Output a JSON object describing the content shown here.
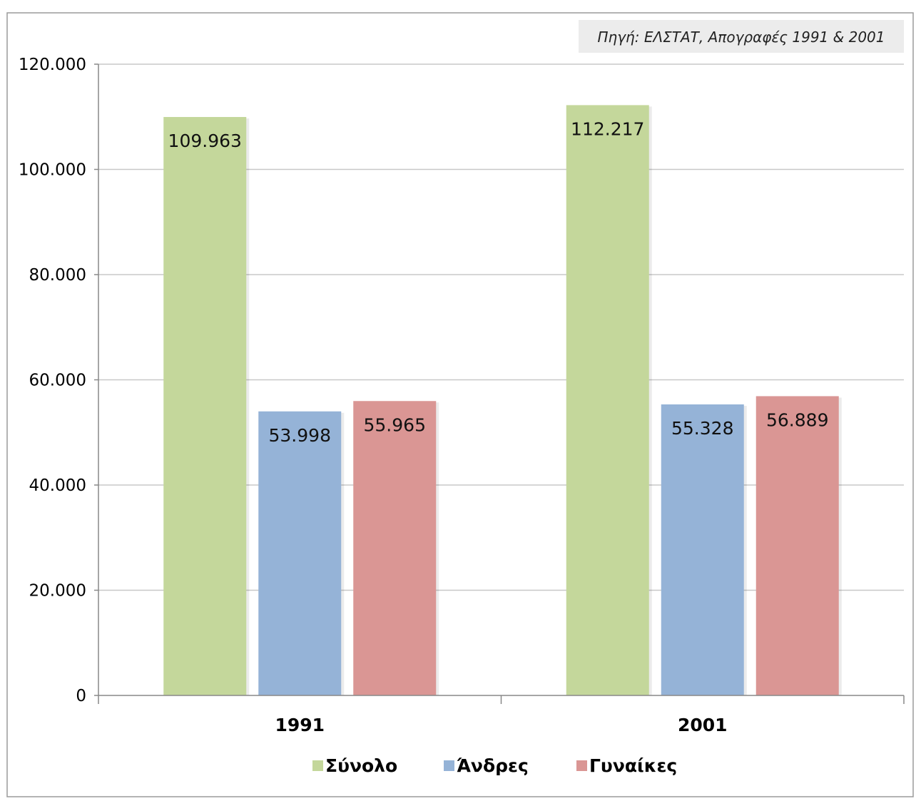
{
  "source_note": "Πηγή: ΕΛΣΤΑΤ, Απογραφές 1991 & 2001",
  "chart_data": {
    "type": "bar",
    "categories": [
      "1991",
      "2001"
    ],
    "series": [
      {
        "name": "Σύνολο",
        "values": [
          109963,
          112217
        ],
        "value_labels": [
          "109.963",
          "112.217"
        ],
        "color": "#c4d79b"
      },
      {
        "name": "Άνδρες",
        "values": [
          53998,
          55328
        ],
        "value_labels": [
          "53.998",
          "55.328"
        ],
        "color": "#95b3d7"
      },
      {
        "name": "Γυναίκες",
        "values": [
          55965,
          56889
        ],
        "value_labels": [
          "55.965",
          "56.889"
        ],
        "color": "#da9694"
      }
    ],
    "ylim": [
      0,
      120000
    ],
    "yticks": [
      0,
      20000,
      40000,
      60000,
      80000,
      100000,
      120000
    ],
    "ytick_labels": [
      "0",
      "20.000",
      "40.000",
      "60.000",
      "80.000",
      "100.000",
      "120.000"
    ],
    "grid": true,
    "legend_position": "bottom",
    "title": "",
    "xlabel": "",
    "ylabel": ""
  }
}
